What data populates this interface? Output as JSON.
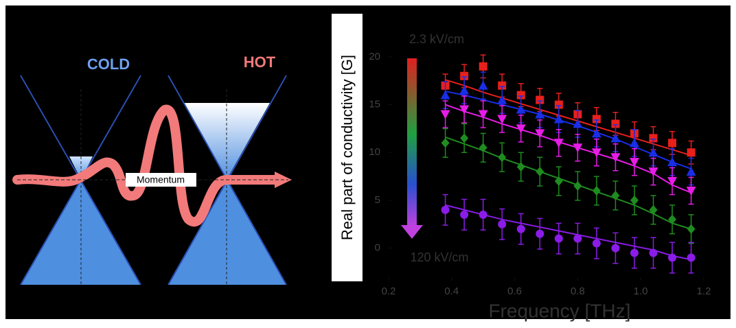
{
  "diagram": {
    "cold_label": "COLD",
    "hot_label": "HOT",
    "axis_label": "Momentum"
  },
  "chart_data": {
    "type": "scatter",
    "ylabel": "Real part of conductivity [G]",
    "xlabel": "Frequency [THz]",
    "field_top": "2.3 kV/cm",
    "field_bottom": "120 kV/cm",
    "xlim": [
      0.2,
      1.2
    ],
    "ylim": [
      -3.4,
      22
    ],
    "xticks": [
      0.2,
      0.4,
      0.6,
      0.8,
      {
        "value": 1,
        "label": "1.0"
      },
      1.2
    ],
    "yticks": [
      0,
      5,
      10,
      15,
      20
    ],
    "x": [
      0.38,
      0.44,
      0.5,
      0.56,
      0.62,
      0.68,
      0.74,
      0.8,
      0.86,
      0.92,
      0.98,
      1.04,
      1.1,
      1.16
    ],
    "series": [
      {
        "color": "#e8201c",
        "marker": "square",
        "error": 1.2,
        "values": [
          17,
          18,
          19,
          17,
          16,
          15.5,
          15,
          14,
          13.5,
          13,
          12,
          11.5,
          11,
          10
        ],
        "fit": [
          17.6,
          17,
          16.3,
          15.7,
          15.1,
          14.5,
          13.9,
          13.3,
          12.7,
          12.1,
          11.5,
          10.9,
          10.3,
          9.7
        ]
      },
      {
        "color": "#1a2ee8",
        "marker": "triangle-up",
        "error": 1.4,
        "values": [
          16,
          16.5,
          17,
          15.5,
          14.5,
          14,
          13.5,
          13,
          12,
          11.5,
          11,
          10,
          9,
          8
        ],
        "fit": [
          16.4,
          16,
          15.5,
          15,
          14.5,
          14,
          13.4,
          12.8,
          12.1,
          11.4,
          10.6,
          9.8,
          9,
          8.3
        ]
      },
      {
        "color": "#e81ce8",
        "marker": "triangle-down",
        "error": 1.4,
        "values": [
          14,
          14.5,
          14,
          13.5,
          12.5,
          12,
          11,
          10.5,
          10,
          9.5,
          9,
          8,
          7,
          6
        ],
        "fit": [
          15,
          14.3,
          13.7,
          13,
          12.4,
          11.8,
          11.1,
          10.5,
          9.9,
          9.3,
          8.6,
          7.8,
          6.6,
          5.8
        ]
      },
      {
        "color": "#1f8c1f",
        "marker": "diamond",
        "error": 1.5,
        "values": [
          11,
          11.5,
          10.5,
          9.5,
          8.5,
          8,
          7,
          6.5,
          6,
          5.5,
          5,
          4,
          3,
          2
        ],
        "fit": [
          11.6,
          10.9,
          10.2,
          9.4,
          8.7,
          8,
          7.3,
          6.6,
          5.9,
          5.2,
          4.5,
          3.6,
          2.6,
          2
        ]
      },
      {
        "color": "#8a1ce8",
        "marker": "circle",
        "error": 1.6,
        "values": [
          4,
          3.5,
          3.5,
          2.5,
          2,
          1.5,
          1,
          1,
          0.5,
          0,
          -0.5,
          -0.5,
          -1,
          -1
        ],
        "fit": [
          4.5,
          4,
          3.5,
          3,
          2.6,
          2.2,
          1.8,
          1.4,
          1,
          0.6,
          0.2,
          -0.2,
          -0.8,
          -1.2
        ]
      }
    ]
  }
}
